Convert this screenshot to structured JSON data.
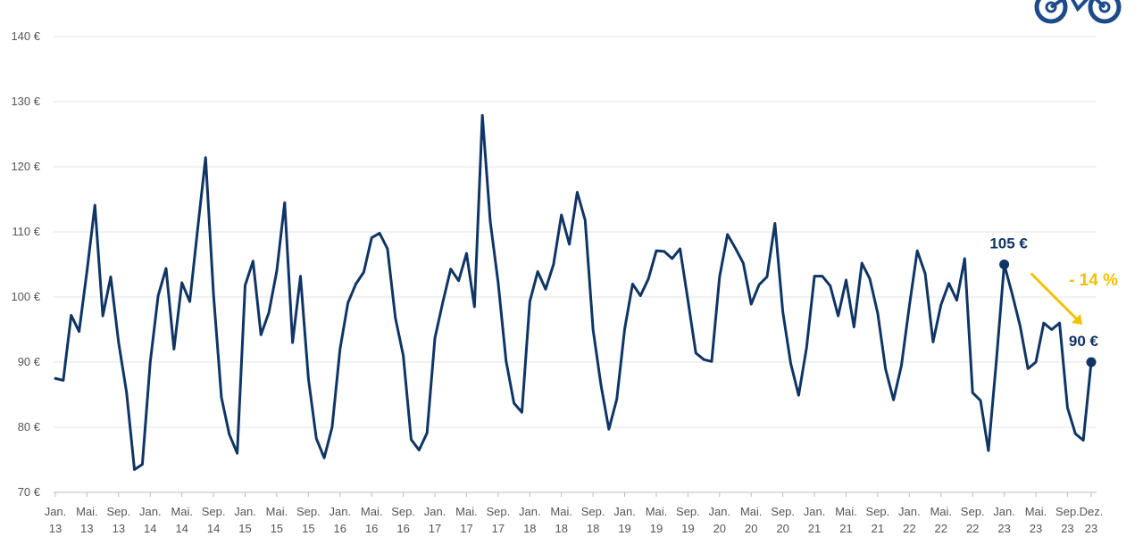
{
  "colors": {
    "line": "#0f3566",
    "accent": "#f2c200",
    "grid": "#e3e3e3",
    "axis": "#bdbdbd",
    "tick_text": "#555555",
    "logo": "#1d4b8a"
  },
  "logo": {
    "icon": "bicycle-icon"
  },
  "chart_data": {
    "type": "line",
    "title": "",
    "xlabel": "",
    "ylabel": "",
    "ylim": [
      70,
      140
    ],
    "y_ticks": [
      {
        "value": 70,
        "label": "70 €"
      },
      {
        "value": 80,
        "label": "80 €"
      },
      {
        "value": 90,
        "label": "90 €"
      },
      {
        "value": 100,
        "label": "100 €"
      },
      {
        "value": 110,
        "label": "110 €"
      },
      {
        "value": 120,
        "label": "120 €"
      },
      {
        "value": 130,
        "label": "130 €"
      },
      {
        "value": 140,
        "label": "140 €"
      }
    ],
    "grid": "horizontal",
    "legend": "none",
    "x_start": "Jan. 13",
    "x_ticks": [
      {
        "index": 0,
        "line1": "Jan.",
        "line2": "13"
      },
      {
        "index": 4,
        "line1": "Mai.",
        "line2": "13"
      },
      {
        "index": 8,
        "line1": "Sep.",
        "line2": "13"
      },
      {
        "index": 12,
        "line1": "Jan.",
        "line2": "14"
      },
      {
        "index": 16,
        "line1": "Mai.",
        "line2": "14"
      },
      {
        "index": 20,
        "line1": "Sep.",
        "line2": "14"
      },
      {
        "index": 24,
        "line1": "Jan.",
        "line2": "15"
      },
      {
        "index": 28,
        "line1": "Mai.",
        "line2": "15"
      },
      {
        "index": 32,
        "line1": "Sep.",
        "line2": "15"
      },
      {
        "index": 36,
        "line1": "Jan.",
        "line2": "16"
      },
      {
        "index": 40,
        "line1": "Mai.",
        "line2": "16"
      },
      {
        "index": 44,
        "line1": "Sep.",
        "line2": "16"
      },
      {
        "index": 48,
        "line1": "Jan.",
        "line2": "17"
      },
      {
        "index": 52,
        "line1": "Mai.",
        "line2": "17"
      },
      {
        "index": 56,
        "line1": "Sep.",
        "line2": "17"
      },
      {
        "index": 60,
        "line1": "Jan.",
        "line2": "18"
      },
      {
        "index": 64,
        "line1": "Mai.",
        "line2": "18"
      },
      {
        "index": 68,
        "line1": "Sep.",
        "line2": "18"
      },
      {
        "index": 72,
        "line1": "Jan.",
        "line2": "19"
      },
      {
        "index": 76,
        "line1": "Mai.",
        "line2": "19"
      },
      {
        "index": 80,
        "line1": "Sep.",
        "line2": "19"
      },
      {
        "index": 84,
        "line1": "Jan.",
        "line2": "20"
      },
      {
        "index": 88,
        "line1": "Mai.",
        "line2": "20"
      },
      {
        "index": 92,
        "line1": "Sep.",
        "line2": "20"
      },
      {
        "index": 96,
        "line1": "Jan.",
        "line2": "21"
      },
      {
        "index": 100,
        "line1": "Mai.",
        "line2": "21"
      },
      {
        "index": 104,
        "line1": "Sep.",
        "line2": "21"
      },
      {
        "index": 108,
        "line1": "Jan.",
        "line2": "22"
      },
      {
        "index": 112,
        "line1": "Mai.",
        "line2": "22"
      },
      {
        "index": 116,
        "line1": "Sep.",
        "line2": "22"
      },
      {
        "index": 120,
        "line1": "Jan.",
        "line2": "23"
      },
      {
        "index": 124,
        "line1": "Mai.",
        "line2": "23"
      },
      {
        "index": 128,
        "line1": "Sep.",
        "line2": "23"
      },
      {
        "index": 131,
        "line1": "Dez.",
        "line2": "23"
      }
    ],
    "series": [
      {
        "values": [
          87.5,
          87.2,
          97.2,
          94.7,
          104,
          114.1,
          97.1,
          103.1,
          93,
          85.4,
          73.5,
          74.3,
          90,
          100.2,
          104.4,
          92,
          102.2,
          99.3,
          110.5,
          121.4,
          100.4,
          84.6,
          78.9,
          76,
          101.8,
          105.5,
          94.2,
          97.6,
          104,
          114.5,
          93,
          103.2,
          87.5,
          78.3,
          75.3,
          80,
          92,
          99.1,
          102,
          103.8,
          109.1,
          109.8,
          107.4,
          96.8,
          91,
          78.1,
          76.5,
          79.1,
          93.7,
          99.2,
          104.3,
          102.5,
          106.7,
          98.5,
          127.9,
          111.6,
          102.2,
          90.2,
          83.7,
          82.3,
          99.3,
          103.9,
          101.2,
          105,
          112.6,
          108.1,
          116.1,
          111.8,
          95,
          86.5,
          79.7,
          84.3,
          95.1,
          102,
          100.2,
          102.8,
          107.1,
          107,
          105.9,
          107.4,
          99.5,
          91.4,
          90.4,
          90.1,
          103.1,
          109.6,
          107.5,
          105.2,
          98.9,
          101.9,
          103.1,
          111.3,
          97.7,
          89.8,
          84.9,
          92.2,
          103.2,
          103.2,
          101.7,
          97.1,
          102.6,
          95.4,
          105.2,
          102.8,
          97.5,
          88.9,
          84.2,
          89.5,
          98.6,
          107.1,
          103.6,
          93.1,
          98.8,
          102.1,
          99.5,
          105.9,
          85.3,
          84.1,
          76.4,
          90.1,
          105,
          100.5,
          95.6,
          89,
          90,
          96,
          95,
          96,
          83,
          79,
          78,
          90
        ]
      }
    ],
    "annotations": [
      {
        "label": "105 €",
        "index": 120,
        "value": 105
      },
      {
        "label": "90 €",
        "index": 131,
        "value": 90
      },
      {
        "label": "- 14 %",
        "kind": "change",
        "from_index": 120,
        "to_index": 131
      }
    ]
  }
}
